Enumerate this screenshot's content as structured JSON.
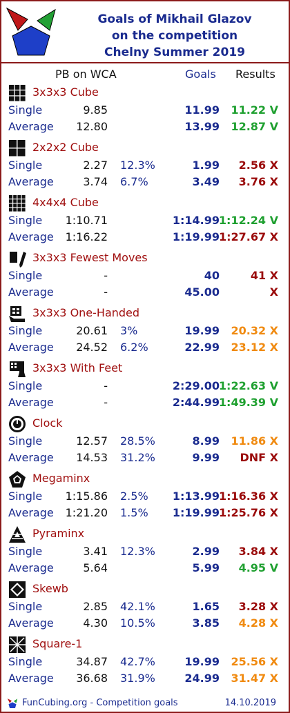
{
  "header": {
    "title_lines": [
      "Goals of Mikhail Glazov",
      "on the competition",
      "Chelny Summer 2019"
    ]
  },
  "columns": {
    "pb": "PB on WCA",
    "goals": "Goals",
    "results": "Results"
  },
  "colors": {
    "green": "#1fa030",
    "red": "#9a0a0a",
    "orange": "#f08a10",
    "navy": "#1a2b8f",
    "border": "#8b1a1a"
  },
  "events": [
    {
      "name": "3x3x3 Cube",
      "icon": "cube-3x3-icon",
      "single": {
        "label": "Single",
        "pb": "9.85",
        "pct": "",
        "goal": "11.99",
        "result": "11.22 V",
        "status": "green"
      },
      "average": {
        "label": "Average",
        "pb": "12.80",
        "pct": "",
        "goal": "13.99",
        "result": "12.87 V",
        "status": "green"
      }
    },
    {
      "name": "2x2x2 Cube",
      "icon": "cube-2x2-icon",
      "single": {
        "label": "Single",
        "pb": "2.27",
        "pct": "12.3%",
        "goal": "1.99",
        "result": "2.56 X",
        "status": "red"
      },
      "average": {
        "label": "Average",
        "pb": "3.74",
        "pct": "6.7%",
        "goal": "3.49",
        "result": "3.76 X",
        "status": "red"
      }
    },
    {
      "name": "4x4x4 Cube",
      "icon": "cube-4x4-icon",
      "single": {
        "label": "Single",
        "pb": "1:10.71",
        "pct": "",
        "goal": "1:14.99",
        "result": "1:12.24 V",
        "status": "green"
      },
      "average": {
        "label": "Average",
        "pb": "1:16.22",
        "pct": "",
        "goal": "1:19.99",
        "result": "1:27.67 X",
        "status": "red"
      }
    },
    {
      "name": "3x3x3 Fewest Moves",
      "icon": "fewest-moves-icon",
      "single": {
        "label": "Single",
        "pb": "-",
        "pct": "",
        "goal": "40",
        "result": "41 X",
        "status": "red"
      },
      "average": {
        "label": "Average",
        "pb": "-",
        "pct": "",
        "goal": "45.00",
        "result": "X",
        "status": "red"
      }
    },
    {
      "name": "3x3x3 One-Handed",
      "icon": "one-handed-icon",
      "single": {
        "label": "Single",
        "pb": "20.61",
        "pct": "3%",
        "goal": "19.99",
        "result": "20.32 X",
        "status": "orange"
      },
      "average": {
        "label": "Average",
        "pb": "24.52",
        "pct": "6.2%",
        "goal": "22.99",
        "result": "23.12 X",
        "status": "orange"
      }
    },
    {
      "name": "3x3x3 With Feet",
      "icon": "with-feet-icon",
      "single": {
        "label": "Single",
        "pb": "-",
        "pct": "",
        "goal": "2:29.00",
        "result": "1:22.63 V",
        "status": "green"
      },
      "average": {
        "label": "Average",
        "pb": "-",
        "pct": "",
        "goal": "2:44.99",
        "result": "1:49.39 V",
        "status": "green"
      }
    },
    {
      "name": "Clock",
      "icon": "clock-icon",
      "single": {
        "label": "Single",
        "pb": "12.57",
        "pct": "28.5%",
        "goal": "8.99",
        "result": "11.86 X",
        "status": "orange"
      },
      "average": {
        "label": "Average",
        "pb": "14.53",
        "pct": "31.2%",
        "goal": "9.99",
        "result": "DNF X",
        "status": "red"
      }
    },
    {
      "name": "Megaminx",
      "icon": "megaminx-icon",
      "single": {
        "label": "Single",
        "pb": "1:15.86",
        "pct": "2.5%",
        "goal": "1:13.99",
        "result": "1:16.36 X",
        "status": "red"
      },
      "average": {
        "label": "Average",
        "pb": "1:21.20",
        "pct": "1.5%",
        "goal": "1:19.99",
        "result": "1:25.76 X",
        "status": "red"
      }
    },
    {
      "name": "Pyraminx",
      "icon": "pyraminx-icon",
      "single": {
        "label": "Single",
        "pb": "3.41",
        "pct": "12.3%",
        "goal": "2.99",
        "result": "3.84 X",
        "status": "red"
      },
      "average": {
        "label": "Average",
        "pb": "5.64",
        "pct": "",
        "goal": "5.99",
        "result": "4.95 V",
        "status": "green"
      }
    },
    {
      "name": "Skewb",
      "icon": "skewb-icon",
      "single": {
        "label": "Single",
        "pb": "2.85",
        "pct": "42.1%",
        "goal": "1.65",
        "result": "3.28 X",
        "status": "red"
      },
      "average": {
        "label": "Average",
        "pb": "4.30",
        "pct": "10.5%",
        "goal": "3.85",
        "result": "4.28 X",
        "status": "orange"
      }
    },
    {
      "name": "Square-1",
      "icon": "square-1-icon",
      "single": {
        "label": "Single",
        "pb": "34.87",
        "pct": "42.7%",
        "goal": "19.99",
        "result": "25.56 X",
        "status": "orange"
      },
      "average": {
        "label": "Average",
        "pb": "36.68",
        "pct": "31.9%",
        "goal": "24.99",
        "result": "31.47 X",
        "status": "orange"
      }
    }
  ],
  "footer": {
    "text": "FunCubing.org - Competition goals",
    "date": "14.10.2019"
  }
}
